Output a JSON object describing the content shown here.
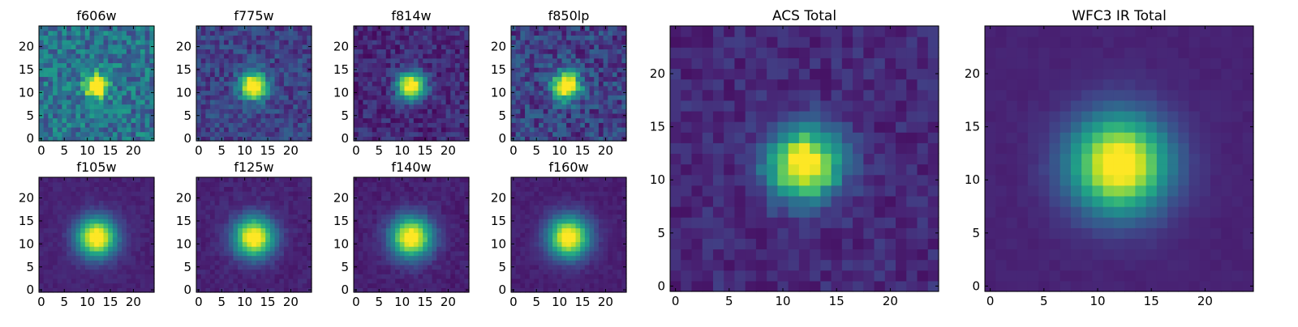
{
  "colormap": "viridis",
  "chart_data": [
    {
      "type": "heatmap",
      "title": "f606w",
      "grid": "25x25",
      "center": [
        12,
        11.5
      ],
      "sigma": 1.7,
      "amplitude": 1.0,
      "background": 0.38,
      "noise": 0.18,
      "x_ticks": [
        "0",
        "5",
        "10",
        "15",
        "20"
      ],
      "y_ticks": [
        "0",
        "5",
        "10",
        "15",
        "20"
      ],
      "xlim": [
        -0.5,
        24.5
      ],
      "ylim": [
        -0.5,
        24.5
      ]
    },
    {
      "type": "heatmap",
      "title": "f775w",
      "grid": "25x25",
      "center": [
        12,
        11.5
      ],
      "sigma": 2.0,
      "amplitude": 1.0,
      "background": 0.2,
      "noise": 0.12,
      "x_ticks": [
        "0",
        "5",
        "10",
        "15",
        "20"
      ],
      "y_ticks": [
        "0",
        "5",
        "10",
        "15",
        "20"
      ],
      "xlim": [
        -0.5,
        24.5
      ],
      "ylim": [
        -0.5,
        24.5
      ]
    },
    {
      "type": "heatmap",
      "title": "f814w",
      "grid": "25x25",
      "center": [
        12,
        11.5
      ],
      "sigma": 2.1,
      "amplitude": 1.0,
      "background": 0.12,
      "noise": 0.1,
      "x_ticks": [
        "0",
        "5",
        "10",
        "15",
        "20"
      ],
      "y_ticks": [
        "0",
        "5",
        "10",
        "15",
        "20"
      ],
      "xlim": [
        -0.5,
        24.5
      ],
      "ylim": [
        -0.5,
        24.5
      ]
    },
    {
      "type": "heatmap",
      "title": "f850lp",
      "grid": "25x25",
      "center": [
        11.5,
        11.5
      ],
      "sigma": 2.1,
      "amplitude": 1.0,
      "background": 0.2,
      "noise": 0.15,
      "x_ticks": [
        "0",
        "5",
        "10",
        "15",
        "20"
      ],
      "y_ticks": [
        "0",
        "5",
        "10",
        "15",
        "20"
      ],
      "xlim": [
        -0.5,
        24.5
      ],
      "ylim": [
        -0.5,
        24.5
      ]
    },
    {
      "type": "heatmap",
      "title": "f105w",
      "grid": "25x25",
      "center": [
        12,
        11.5
      ],
      "sigma": 3.0,
      "amplitude": 1.0,
      "background": 0.1,
      "noise": 0.03,
      "x_ticks": [
        "0",
        "5",
        "10",
        "15",
        "20"
      ],
      "y_ticks": [
        "0",
        "5",
        "10",
        "15",
        "20"
      ],
      "xlim": [
        -0.5,
        24.5
      ],
      "ylim": [
        -0.5,
        24.5
      ]
    },
    {
      "type": "heatmap",
      "title": "f125w",
      "grid": "25x25",
      "center": [
        12,
        11.5
      ],
      "sigma": 3.0,
      "amplitude": 1.0,
      "background": 0.1,
      "noise": 0.04,
      "x_ticks": [
        "0",
        "5",
        "10",
        "15",
        "20"
      ],
      "y_ticks": [
        "0",
        "5",
        "10",
        "15",
        "20"
      ],
      "xlim": [
        -0.5,
        24.5
      ],
      "ylim": [
        -0.5,
        24.5
      ]
    },
    {
      "type": "heatmap",
      "title": "f140w",
      "grid": "25x25",
      "center": [
        12,
        11.5
      ],
      "sigma": 3.1,
      "amplitude": 1.0,
      "background": 0.09,
      "noise": 0.04,
      "x_ticks": [
        "0",
        "5",
        "10",
        "15",
        "20"
      ],
      "y_ticks": [
        "0",
        "5",
        "10",
        "15",
        "20"
      ],
      "xlim": [
        -0.5,
        24.5
      ],
      "ylim": [
        -0.5,
        24.5
      ]
    },
    {
      "type": "heatmap",
      "title": "f160w",
      "grid": "25x25",
      "center": [
        12,
        11.5
      ],
      "sigma": 3.1,
      "amplitude": 1.0,
      "background": 0.09,
      "noise": 0.03,
      "x_ticks": [
        "0",
        "5",
        "10",
        "15",
        "20"
      ],
      "y_ticks": [
        "0",
        "5",
        "10",
        "15",
        "20"
      ],
      "xlim": [
        -0.5,
        24.5
      ],
      "ylim": [
        -0.5,
        24.5
      ]
    },
    {
      "type": "heatmap",
      "title": "ACS Total",
      "grid": "25x25",
      "center": [
        12,
        11.5
      ],
      "sigma": 2.3,
      "amplitude": 1.0,
      "background": 0.12,
      "noise": 0.07,
      "x_ticks": [
        "0",
        "5",
        "10",
        "15",
        "20"
      ],
      "y_ticks": [
        "0",
        "5",
        "10",
        "15",
        "20"
      ],
      "xlim": [
        -0.5,
        24.5
      ],
      "ylim": [
        -0.5,
        24.5
      ]
    },
    {
      "type": "heatmap",
      "title": "WFC3 IR Total",
      "grid": "25x25",
      "center": [
        12,
        11.5
      ],
      "sigma": 3.2,
      "amplitude": 1.0,
      "background": 0.1,
      "noise": 0.015,
      "x_ticks": [
        "0",
        "5",
        "10",
        "15",
        "20"
      ],
      "y_ticks": [
        "0",
        "5",
        "10",
        "15",
        "20"
      ],
      "xlim": [
        -0.5,
        24.5
      ],
      "ylim": [
        -0.5,
        24.5
      ]
    }
  ]
}
